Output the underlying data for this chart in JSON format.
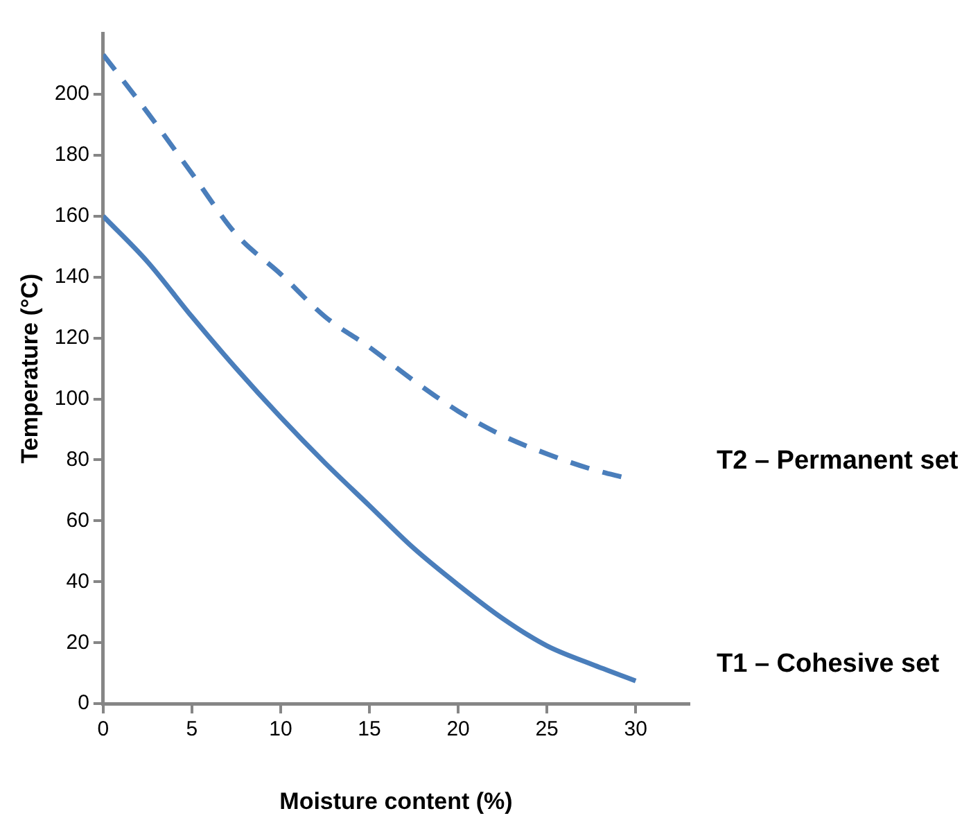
{
  "chart_data": {
    "type": "line",
    "xlabel": "Moisture content (%)",
    "ylabel": "Temperature (°C)",
    "xlim": [
      0,
      33
    ],
    "xticks": [
      0,
      5,
      10,
      15,
      20,
      25,
      30
    ],
    "ylim": [
      0,
      220
    ],
    "yticks": [
      0,
      20,
      40,
      60,
      80,
      100,
      120,
      140,
      160,
      180,
      200
    ],
    "grid": false,
    "legend": false,
    "marker": "none",
    "series": [
      {
        "name": "T2 – Permanent set",
        "color": "#4a7ebb",
        "line_style": "dashed",
        "x": [
          0,
          2.5,
          5,
          7.5,
          10,
          12.5,
          15,
          17.5,
          20,
          22.5,
          25,
          27.5,
          29.5
        ],
        "values": [
          213,
          194,
          174,
          154,
          141,
          127,
          117,
          106,
          96,
          88,
          82,
          77,
          74
        ]
      },
      {
        "name": "T1 – Cohesive set",
        "color": "#4a7ebb",
        "line_style": "solid",
        "x": [
          0,
          2.5,
          5,
          7.5,
          10,
          12.5,
          15,
          17.5,
          20,
          22.5,
          25,
          27.5,
          30
        ],
        "values": [
          160,
          145,
          127,
          110,
          94,
          79,
          65,
          51,
          39,
          28,
          19,
          13,
          7.5
        ]
      }
    ]
  }
}
